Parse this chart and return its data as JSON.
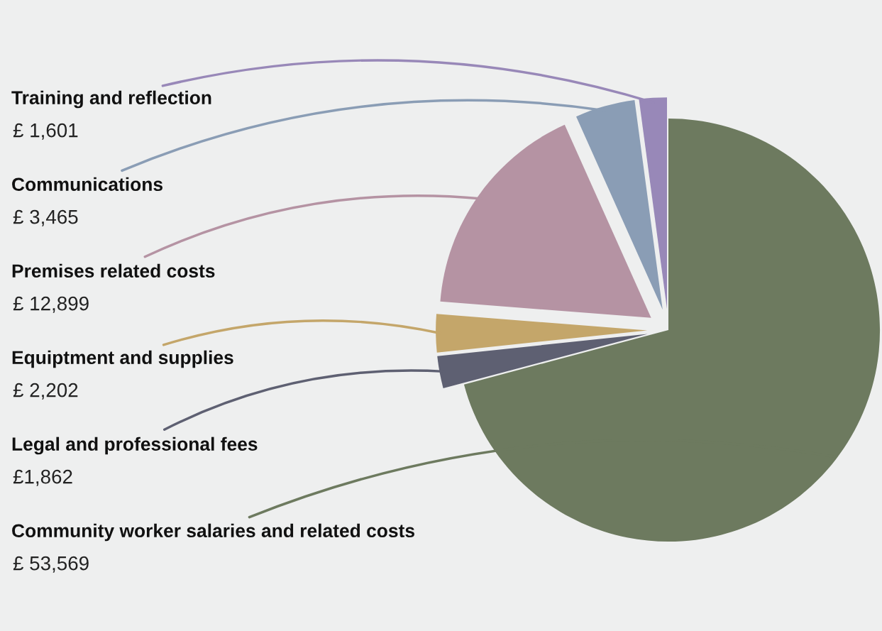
{
  "chart_data": {
    "type": "pie",
    "categories": [
      "Community worker salaries and related costs",
      "Legal and professional fees",
      "Equiptment and supplies",
      "Premises related costs",
      "Communications",
      "Training and reflection"
    ],
    "values": [
      53569,
      1862,
      2202,
      12899,
      3465,
      1601
    ],
    "value_labels": [
      "£ 53,569",
      "£1,862",
      "£ 2,202",
      "£ 12,899",
      "£ 3,465",
      "£ 1,601"
    ],
    "colors": [
      "#6d7a5f",
      "#5e6072",
      "#c4a66a",
      "#b593a3",
      "#8a9db5",
      "#9888b8"
    ],
    "legend": false
  }
}
